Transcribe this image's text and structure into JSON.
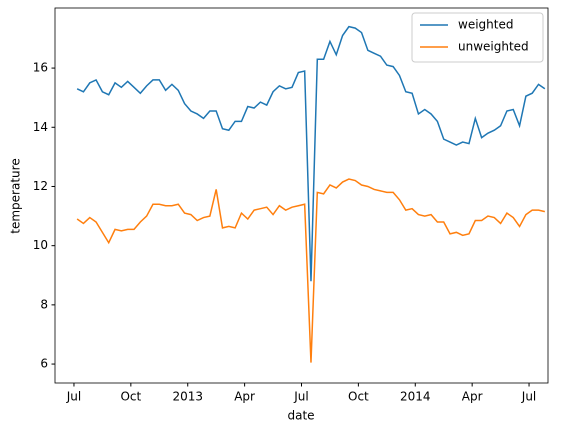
{
  "chart_data": {
    "type": "line",
    "xlabel": "date",
    "ylabel": "temperature",
    "x": [
      "2012-07",
      "2012-07",
      "2012-07",
      "2012-08",
      "2012-08",
      "2012-08",
      "2012-09",
      "2012-09",
      "2012-09",
      "2012-10",
      "2012-10",
      "2012-10",
      "2012-11",
      "2012-11",
      "2012-11",
      "2012-12",
      "2012-12",
      "2012-12",
      "2013-01",
      "2013-01",
      "2013-01",
      "2013-02",
      "2013-02",
      "2013-02",
      "2013-03",
      "2013-03",
      "2013-03",
      "2013-04",
      "2013-04",
      "2013-04",
      "2013-05",
      "2013-05",
      "2013-05",
      "2013-06",
      "2013-06",
      "2013-06",
      "2013-07",
      "2013-07",
      "2013-07",
      "2013-08",
      "2013-08",
      "2013-08",
      "2013-09",
      "2013-09",
      "2013-09",
      "2013-10",
      "2013-10",
      "2013-10",
      "2013-11",
      "2013-11",
      "2013-11",
      "2013-12",
      "2013-12",
      "2013-12",
      "2014-01",
      "2014-01",
      "2014-01",
      "2014-02",
      "2014-02",
      "2014-02",
      "2014-03",
      "2014-03",
      "2014-03",
      "2014-04",
      "2014-04",
      "2014-04",
      "2014-05",
      "2014-05",
      "2014-05",
      "2014-06",
      "2014-06",
      "2014-06",
      "2014-07",
      "2014-07",
      "2014-07"
    ],
    "series": [
      {
        "name": "weighted",
        "color": "#1f77b4",
        "values": [
          15.3,
          15.2,
          15.5,
          15.6,
          15.2,
          15.1,
          15.5,
          15.35,
          15.55,
          15.35,
          15.15,
          15.4,
          15.6,
          15.6,
          15.25,
          15.45,
          15.25,
          14.8,
          14.55,
          14.45,
          14.3,
          14.55,
          14.55,
          13.95,
          13.9,
          14.2,
          14.2,
          14.7,
          14.65,
          14.85,
          14.75,
          15.2,
          15.4,
          15.3,
          15.35,
          15.85,
          15.9,
          8.8,
          16.3,
          16.3,
          16.9,
          16.45,
          17.1,
          17.4,
          17.35,
          17.2,
          16.6,
          16.5,
          16.4,
          16.1,
          16.05,
          15.75,
          15.2,
          15.15,
          14.45,
          14.6,
          14.45,
          14.2,
          13.6,
          13.5,
          13.4,
          13.5,
          13.45,
          14.3,
          13.65,
          13.8,
          13.9,
          14.05,
          14.55,
          14.6,
          14.05,
          15.05,
          15.15,
          15.45,
          15.3
        ]
      },
      {
        "name": "unweighted",
        "color": "#ff7f0e",
        "values": [
          10.9,
          10.75,
          10.95,
          10.8,
          10.45,
          10.1,
          10.55,
          10.5,
          10.55,
          10.55,
          10.8,
          11.0,
          11.4,
          11.4,
          11.35,
          11.35,
          11.4,
          11.1,
          11.05,
          10.85,
          10.95,
          11.0,
          11.9,
          10.6,
          10.65,
          10.6,
          11.1,
          10.9,
          11.2,
          11.25,
          11.3,
          11.05,
          11.35,
          11.2,
          11.3,
          11.35,
          11.4,
          6.05,
          11.8,
          11.75,
          12.05,
          11.95,
          12.15,
          12.25,
          12.2,
          12.05,
          12.0,
          11.9,
          11.85,
          11.8,
          11.8,
          11.55,
          11.2,
          11.25,
          11.05,
          11.0,
          11.05,
          10.8,
          10.8,
          10.4,
          10.45,
          10.35,
          10.4,
          10.85,
          10.85,
          11.0,
          10.95,
          10.75,
          11.1,
          10.95,
          10.65,
          11.05,
          11.2,
          11.2,
          11.15
        ]
      }
    ],
    "xlim": [
      "2012-06",
      "2014-08"
    ],
    "xticks": [
      {
        "value": "2012-07",
        "label": "Jul"
      },
      {
        "value": "2012-10",
        "label": "Oct"
      },
      {
        "value": "2013-01",
        "label": "2013"
      },
      {
        "value": "2013-04",
        "label": "Apr"
      },
      {
        "value": "2013-07",
        "label": "Jul"
      },
      {
        "value": "2013-10",
        "label": "Oct"
      },
      {
        "value": "2014-01",
        "label": "2014"
      },
      {
        "value": "2014-04",
        "label": "Apr"
      },
      {
        "value": "2014-07",
        "label": "Jul"
      }
    ],
    "ylim": [
      5.36,
      18.03
    ],
    "yticks": [
      6,
      8,
      10,
      12,
      14,
      16
    ],
    "legend": "upper right"
  }
}
